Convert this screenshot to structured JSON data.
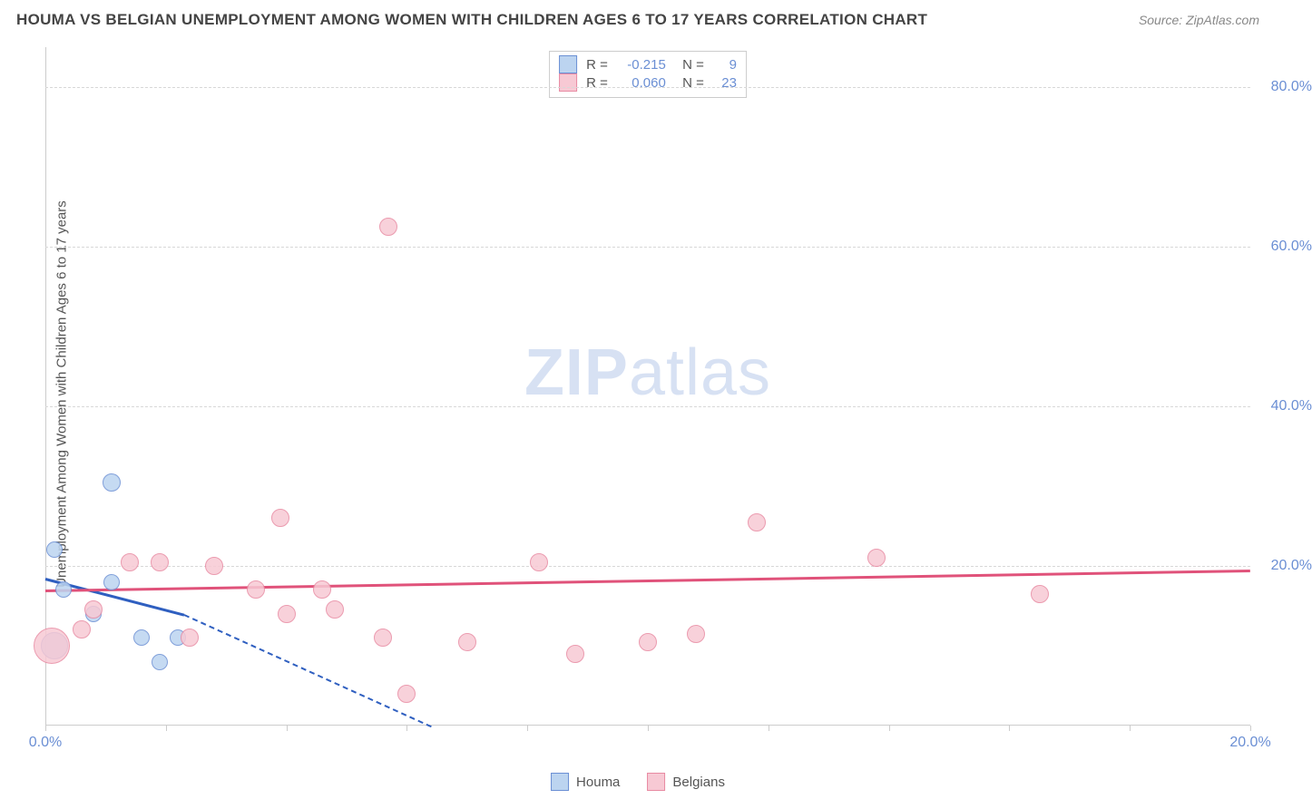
{
  "header": {
    "title": "HOUMA VS BELGIAN UNEMPLOYMENT AMONG WOMEN WITH CHILDREN AGES 6 TO 17 YEARS CORRELATION CHART",
    "source": "Source: ZipAtlas.com"
  },
  "chart": {
    "type": "scatter",
    "y_axis_label": "Unemployment Among Women with Children Ages 6 to 17 years",
    "watermark": {
      "bold_part": "ZIP",
      "light_part": "atlas"
    },
    "background_color": "#ffffff",
    "grid_color": "#d8d8d8",
    "axis_color": "#cccccc",
    "tick_label_color": "#6b8fd4",
    "xlim": [
      0,
      20
    ],
    "ylim": [
      0,
      85
    ],
    "y_ticks": [
      {
        "value": 20,
        "label": "20.0%"
      },
      {
        "value": 40,
        "label": "40.0%"
      },
      {
        "value": 60,
        "label": "60.0%"
      },
      {
        "value": 80,
        "label": "80.0%"
      }
    ],
    "x_ticks": [
      0,
      2,
      4,
      6,
      8,
      10,
      12,
      14,
      16,
      18,
      20
    ],
    "x_tick_labels": [
      {
        "value": 0,
        "label": "0.0%"
      },
      {
        "value": 20,
        "label": "20.0%"
      }
    ],
    "series": [
      {
        "name": "Houma",
        "fill": "#bcd4f0",
        "stroke": "#6b8fd4",
        "trend_color": "#2f5fc0",
        "r_value": "-0.215",
        "n_value": "9",
        "points": [
          {
            "x": 0.15,
            "y": 22.0,
            "r": 9
          },
          {
            "x": 0.15,
            "y": 10.0,
            "r": 15
          },
          {
            "x": 0.3,
            "y": 17.0,
            "r": 9
          },
          {
            "x": 0.8,
            "y": 14.0,
            "r": 9
          },
          {
            "x": 1.1,
            "y": 30.5,
            "r": 10
          },
          {
            "x": 1.1,
            "y": 18.0,
            "r": 9
          },
          {
            "x": 1.6,
            "y": 11.0,
            "r": 9
          },
          {
            "x": 1.9,
            "y": 8.0,
            "r": 9
          },
          {
            "x": 2.2,
            "y": 11.0,
            "r": 9
          }
        ],
        "trend": {
          "x1": 0,
          "y1": 18.5,
          "x2": 2.3,
          "y2": 14.0,
          "dash_to_x": 6.4,
          "dash_to_y": 0
        }
      },
      {
        "name": "Belgians",
        "fill": "#f7c9d4",
        "stroke": "#e88aa2",
        "trend_color": "#e0527a",
        "r_value": "0.060",
        "n_value": "23",
        "points": [
          {
            "x": 0.1,
            "y": 10.0,
            "r": 20
          },
          {
            "x": 0.6,
            "y": 12.0,
            "r": 10
          },
          {
            "x": 0.8,
            "y": 14.5,
            "r": 10
          },
          {
            "x": 1.4,
            "y": 20.5,
            "r": 10
          },
          {
            "x": 1.9,
            "y": 20.5,
            "r": 10
          },
          {
            "x": 2.4,
            "y": 11.0,
            "r": 10
          },
          {
            "x": 2.8,
            "y": 20.0,
            "r": 10
          },
          {
            "x": 3.5,
            "y": 17.0,
            "r": 10
          },
          {
            "x": 3.9,
            "y": 26.0,
            "r": 10
          },
          {
            "x": 4.0,
            "y": 14.0,
            "r": 10
          },
          {
            "x": 4.6,
            "y": 17.0,
            "r": 10
          },
          {
            "x": 4.8,
            "y": 14.5,
            "r": 10
          },
          {
            "x": 5.6,
            "y": 11.0,
            "r": 10
          },
          {
            "x": 5.7,
            "y": 62.5,
            "r": 10
          },
          {
            "x": 6.0,
            "y": 4.0,
            "r": 10
          },
          {
            "x": 7.0,
            "y": 10.5,
            "r": 10
          },
          {
            "x": 8.2,
            "y": 20.5,
            "r": 10
          },
          {
            "x": 8.8,
            "y": 9.0,
            "r": 10
          },
          {
            "x": 10.0,
            "y": 10.5,
            "r": 10
          },
          {
            "x": 10.8,
            "y": 11.5,
            "r": 10
          },
          {
            "x": 11.8,
            "y": 25.5,
            "r": 10
          },
          {
            "x": 13.8,
            "y": 21.0,
            "r": 10
          },
          {
            "x": 16.5,
            "y": 16.5,
            "r": 10
          }
        ],
        "trend": {
          "x1": 0,
          "y1": 17.0,
          "x2": 20,
          "y2": 19.5
        }
      }
    ],
    "legend_bottom": [
      {
        "label": "Houma",
        "fill": "#bcd4f0",
        "stroke": "#6b8fd4"
      },
      {
        "label": "Belgians",
        "fill": "#f7c9d4",
        "stroke": "#e88aa2"
      }
    ]
  }
}
